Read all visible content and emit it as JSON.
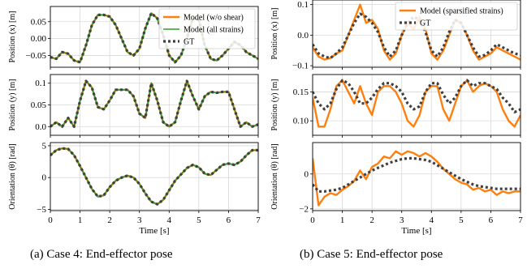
{
  "captions": {
    "left": "(a) Case 4: End-effector pose",
    "right": "(b) Case 5: End-effector pose"
  },
  "colors": {
    "model": "#ff7f0e",
    "model_all": "#2ca02c",
    "gt": "#404040"
  },
  "chart_data": [
    {
      "type": "line",
      "id": "case4-x",
      "ylabel": "Position (x) [m]",
      "xlim": [
        0,
        7
      ],
      "ylim": [
        -0.085,
        0.095
      ],
      "yticks": [
        -0.05,
        0,
        0.05
      ],
      "ytick_labels": [
        "−0.05",
        "0.00",
        "0.05"
      ],
      "xticks": [
        0,
        1,
        2,
        3,
        4,
        5,
        6,
        7
      ],
      "show_xticklabels": false,
      "legend": {
        "position": "top-right",
        "entries": [
          "Model (w/o shear)",
          "Model (all strains)",
          "GT"
        ]
      },
      "x": [
        0,
        0.2,
        0.4,
        0.6,
        0.8,
        1.0,
        1.2,
        1.4,
        1.6,
        1.8,
        2.0,
        2.2,
        2.4,
        2.6,
        2.8,
        3.0,
        3.2,
        3.4,
        3.6,
        3.8,
        4.0,
        4.2,
        4.4,
        4.6,
        4.8,
        5.0,
        5.2,
        5.4,
        5.6,
        5.8,
        6.0,
        6.2,
        6.4,
        6.6,
        6.8,
        7.0
      ],
      "series": [
        {
          "name": "Model (w/o shear)",
          "style": "model",
          "values": [
            -0.055,
            -0.06,
            -0.04,
            -0.045,
            -0.065,
            -0.07,
            -0.02,
            0.04,
            0.07,
            0.07,
            0.065,
            0.04,
            0.0,
            -0.04,
            -0.05,
            -0.03,
            0.03,
            0.075,
            0.06,
            0.01,
            -0.05,
            -0.07,
            -0.05,
            0.0,
            0.06,
            0.055,
            -0.02,
            -0.06,
            -0.065,
            -0.05,
            -0.03,
            -0.01,
            -0.02,
            -0.04,
            -0.05,
            -0.06
          ]
        },
        {
          "name": "Model (all strains)",
          "style": "model_all",
          "values": [
            -0.055,
            -0.06,
            -0.04,
            -0.045,
            -0.065,
            -0.07,
            -0.02,
            0.04,
            0.07,
            0.07,
            0.065,
            0.04,
            0.0,
            -0.04,
            -0.05,
            -0.03,
            0.03,
            0.075,
            0.06,
            0.01,
            -0.05,
            -0.07,
            -0.05,
            0.0,
            0.06,
            0.055,
            -0.02,
            -0.06,
            -0.065,
            -0.05,
            -0.03,
            -0.01,
            -0.02,
            -0.04,
            -0.05,
            -0.06
          ]
        },
        {
          "name": "GT",
          "style": "gt",
          "values": [
            -0.055,
            -0.06,
            -0.04,
            -0.045,
            -0.065,
            -0.07,
            -0.02,
            0.04,
            0.07,
            0.07,
            0.065,
            0.04,
            0.0,
            -0.04,
            -0.05,
            -0.03,
            0.03,
            0.075,
            0.06,
            0.01,
            -0.05,
            -0.07,
            -0.05,
            0.0,
            0.06,
            0.055,
            -0.02,
            -0.06,
            -0.065,
            -0.05,
            -0.03,
            -0.01,
            -0.02,
            -0.04,
            -0.05,
            -0.06
          ]
        }
      ]
    },
    {
      "type": "line",
      "id": "case4-y",
      "ylabel": "Position (y) [m]",
      "xlim": [
        0,
        7
      ],
      "ylim": [
        -0.02,
        0.12
      ],
      "yticks": [
        0.0,
        0.05,
        0.1
      ],
      "ytick_labels": [
        "0.0",
        "0.05",
        "0.1"
      ],
      "xticks": [
        0,
        1,
        2,
        3,
        4,
        5,
        6,
        7
      ],
      "show_xticklabels": false,
      "x": [
        0,
        0.2,
        0.4,
        0.6,
        0.8,
        1.0,
        1.2,
        1.4,
        1.6,
        1.8,
        2.0,
        2.2,
        2.4,
        2.6,
        2.8,
        3.0,
        3.2,
        3.4,
        3.6,
        3.8,
        4.0,
        4.2,
        4.4,
        4.6,
        4.8,
        5.0,
        5.2,
        5.4,
        5.6,
        5.8,
        6.0,
        6.2,
        6.4,
        6.6,
        6.8,
        7.0
      ],
      "series": [
        {
          "name": "Model (w/o shear)",
          "style": "model",
          "values": [
            0.0,
            0.01,
            0.0,
            0.02,
            0.0,
            0.06,
            0.105,
            0.09,
            0.045,
            0.04,
            0.06,
            0.085,
            0.085,
            0.085,
            0.07,
            0.03,
            0.02,
            0.1,
            0.06,
            0.01,
            0.0,
            0.01,
            0.06,
            0.105,
            0.07,
            0.04,
            0.07,
            0.08,
            0.078,
            0.08,
            0.08,
            0.04,
            0.0,
            0.01,
            0.0,
            0.005
          ]
        },
        {
          "name": "Model (all strains)",
          "style": "model_all",
          "values": [
            0.0,
            0.01,
            0.0,
            0.02,
            0.0,
            0.06,
            0.105,
            0.09,
            0.045,
            0.04,
            0.06,
            0.085,
            0.085,
            0.085,
            0.07,
            0.03,
            0.02,
            0.1,
            0.06,
            0.01,
            0.0,
            0.01,
            0.06,
            0.105,
            0.07,
            0.04,
            0.07,
            0.08,
            0.078,
            0.08,
            0.08,
            0.04,
            0.0,
            0.01,
            0.0,
            0.005
          ]
        },
        {
          "name": "GT",
          "style": "gt",
          "values": [
            0.0,
            0.01,
            0.0,
            0.02,
            0.0,
            0.06,
            0.105,
            0.09,
            0.045,
            0.04,
            0.06,
            0.085,
            0.085,
            0.085,
            0.07,
            0.03,
            0.02,
            0.1,
            0.06,
            0.01,
            0.0,
            0.01,
            0.06,
            0.105,
            0.07,
            0.04,
            0.07,
            0.08,
            0.078,
            0.08,
            0.08,
            0.04,
            0.0,
            0.01,
            0.0,
            0.005
          ]
        }
      ]
    },
    {
      "type": "line",
      "id": "case4-theta",
      "ylabel": "Orientation (θ) [rad]",
      "xlim": [
        0,
        7
      ],
      "ylim": [
        -5.2,
        5.5
      ],
      "yticks": [
        -5,
        0,
        5
      ],
      "ytick_labels": [
        "−5",
        "0",
        "5"
      ],
      "xticks": [
        0,
        1,
        2,
        3,
        4,
        5,
        6,
        7
      ],
      "xtick_labels": [
        "0",
        "1",
        "2",
        "3",
        "4",
        "5",
        "6",
        "7"
      ],
      "show_xticklabels": true,
      "xlabel": "Time [s]",
      "x": [
        0,
        0.2,
        0.4,
        0.6,
        0.8,
        1.0,
        1.2,
        1.4,
        1.6,
        1.8,
        2.0,
        2.2,
        2.4,
        2.6,
        2.8,
        3.0,
        3.2,
        3.4,
        3.6,
        3.8,
        4.0,
        4.2,
        4.4,
        4.6,
        4.8,
        5.0,
        5.2,
        5.4,
        5.6,
        5.8,
        6.0,
        6.2,
        6.4,
        6.6,
        6.8,
        7.0
      ],
      "series": [
        {
          "name": "Model (w/o shear)",
          "style": "model",
          "values": [
            3.5,
            4.3,
            4.6,
            4.5,
            3.5,
            1.8,
            0.0,
            -1.8,
            -3.0,
            -2.8,
            -1.5,
            -0.5,
            0.0,
            0.3,
            0.0,
            -1.0,
            -2.5,
            -3.8,
            -4.2,
            -3.5,
            -2.0,
            -0.5,
            0.5,
            1.5,
            2.0,
            1.6,
            0.6,
            0.4,
            1.2,
            2.0,
            2.2,
            2.0,
            2.5,
            3.5,
            4.3,
            4.3
          ]
        },
        {
          "name": "Model (all strains)",
          "style": "model_all",
          "values": [
            3.5,
            4.3,
            4.6,
            4.5,
            3.5,
            1.8,
            0.0,
            -1.8,
            -3.0,
            -2.8,
            -1.5,
            -0.5,
            0.0,
            0.3,
            0.0,
            -1.0,
            -2.5,
            -3.8,
            -4.2,
            -3.5,
            -2.0,
            -0.5,
            0.5,
            1.5,
            2.0,
            1.6,
            0.6,
            0.4,
            1.2,
            2.0,
            2.2,
            2.0,
            2.5,
            3.5,
            4.3,
            4.3
          ]
        },
        {
          "name": "GT",
          "style": "gt",
          "values": [
            3.5,
            4.3,
            4.6,
            4.5,
            3.5,
            1.8,
            0.0,
            -1.8,
            -3.0,
            -2.8,
            -1.5,
            -0.5,
            0.0,
            0.3,
            0.0,
            -1.0,
            -2.5,
            -3.8,
            -4.2,
            -3.5,
            -2.0,
            -0.5,
            0.5,
            1.5,
            2.0,
            1.6,
            0.6,
            0.4,
            1.2,
            2.0,
            2.2,
            2.0,
            2.5,
            3.5,
            4.3,
            4.3
          ]
        }
      ]
    },
    {
      "type": "line",
      "id": "case5-x",
      "ylabel": "Position (x) [m]",
      "xlim": [
        0,
        7
      ],
      "ylim": [
        -0.105,
        0.115
      ],
      "yticks": [
        -0.1,
        0.0,
        0.1
      ],
      "ytick_labels": [
        "−0.1",
        "0.0",
        "0.1"
      ],
      "xticks": [
        0,
        1,
        2,
        3,
        4,
        5,
        6,
        7
      ],
      "show_xticklabels": false,
      "legend": {
        "position": "top-right",
        "entries": [
          "Model (sparsified strains)",
          "GT"
        ]
      },
      "x": [
        0,
        0.2,
        0.4,
        0.6,
        0.8,
        1.0,
        1.2,
        1.4,
        1.6,
        1.8,
        2.0,
        2.2,
        2.4,
        2.6,
        2.8,
        3.0,
        3.2,
        3.4,
        3.6,
        3.8,
        4.0,
        4.2,
        4.4,
        4.6,
        4.8,
        5.0,
        5.2,
        5.4,
        5.6,
        5.8,
        6.0,
        6.2,
        6.4,
        6.6,
        6.8,
        7.0
      ],
      "series": [
        {
          "name": "Model (sparsified strains)",
          "style": "model",
          "values": [
            -0.04,
            -0.07,
            -0.08,
            -0.075,
            -0.06,
            -0.05,
            0.0,
            0.05,
            0.1,
            0.04,
            0.05,
            0.02,
            -0.05,
            -0.08,
            -0.06,
            0.0,
            0.04,
            0.02,
            0.06,
            0.02,
            -0.06,
            -0.08,
            -0.05,
            0.0,
            0.05,
            0.04,
            0.0,
            -0.05,
            -0.08,
            -0.07,
            -0.06,
            -0.04,
            -0.05,
            -0.06,
            -0.07,
            -0.08
          ]
        },
        {
          "name": "GT",
          "style": "gt",
          "values": [
            -0.03,
            -0.06,
            -0.07,
            -0.075,
            -0.06,
            -0.04,
            0.0,
            0.04,
            0.07,
            0.06,
            0.04,
            0.01,
            -0.04,
            -0.07,
            -0.05,
            0.0,
            0.04,
            0.06,
            0.05,
            0.01,
            -0.05,
            -0.07,
            -0.04,
            0.01,
            0.05,
            0.04,
            0.0,
            -0.04,
            -0.07,
            -0.065,
            -0.05,
            -0.03,
            -0.04,
            -0.05,
            -0.06,
            -0.065
          ]
        }
      ]
    },
    {
      "type": "line",
      "id": "case5-y",
      "ylabel": "Position (y) [m]",
      "xlim": [
        0,
        7
      ],
      "ylim": [
        0.075,
        0.18
      ],
      "yticks": [
        0.1,
        0.15
      ],
      "ytick_labels": [
        "0.10",
        "0.15"
      ],
      "xticks": [
        0,
        1,
        2,
        3,
        4,
        5,
        6,
        7
      ],
      "show_xticklabels": false,
      "x": [
        0,
        0.2,
        0.4,
        0.6,
        0.8,
        1.0,
        1.2,
        1.4,
        1.6,
        1.8,
        2.0,
        2.2,
        2.4,
        2.6,
        2.8,
        3.0,
        3.2,
        3.4,
        3.6,
        3.8,
        4.0,
        4.2,
        4.4,
        4.6,
        4.8,
        5.0,
        5.2,
        5.4,
        5.6,
        5.8,
        6.0,
        6.2,
        6.4,
        6.6,
        6.8,
        7.0
      ],
      "series": [
        {
          "name": "Model (sparsified strains)",
          "style": "model",
          "values": [
            0.14,
            0.09,
            0.09,
            0.12,
            0.16,
            0.17,
            0.15,
            0.13,
            0.16,
            0.13,
            0.11,
            0.15,
            0.16,
            0.16,
            0.15,
            0.13,
            0.1,
            0.09,
            0.11,
            0.15,
            0.16,
            0.16,
            0.12,
            0.1,
            0.13,
            0.16,
            0.17,
            0.15,
            0.16,
            0.165,
            0.16,
            0.15,
            0.12,
            0.1,
            0.09,
            0.11
          ]
        },
        {
          "name": "GT",
          "style": "gt",
          "values": [
            0.15,
            0.13,
            0.12,
            0.13,
            0.155,
            0.17,
            0.165,
            0.15,
            0.13,
            0.13,
            0.14,
            0.155,
            0.165,
            0.165,
            0.16,
            0.15,
            0.13,
            0.12,
            0.125,
            0.15,
            0.165,
            0.165,
            0.145,
            0.13,
            0.14,
            0.16,
            0.17,
            0.16,
            0.165,
            0.165,
            0.16,
            0.155,
            0.14,
            0.13,
            0.115,
            0.12
          ]
        }
      ]
    },
    {
      "type": "line",
      "id": "case5-theta",
      "ylabel": "Orientation (θ) [rad]",
      "xlim": [
        0,
        7
      ],
      "ylim": [
        -2.1,
        1.8
      ],
      "yticks": [
        -2,
        0
      ],
      "ytick_labels": [
        "−2",
        "0"
      ],
      "xticks": [
        0,
        1,
        2,
        3,
        4,
        5,
        6,
        7
      ],
      "xtick_labels": [
        "0",
        "1",
        "2",
        "3",
        "4",
        "5",
        "6",
        "7"
      ],
      "show_xticklabels": true,
      "xlabel": "Time [s]",
      "x": [
        0,
        0.2,
        0.4,
        0.6,
        0.8,
        1.0,
        1.2,
        1.4,
        1.6,
        1.8,
        2.0,
        2.2,
        2.4,
        2.6,
        2.8,
        3.0,
        3.2,
        3.4,
        3.6,
        3.8,
        4.0,
        4.2,
        4.4,
        4.6,
        4.8,
        5.0,
        5.2,
        5.4,
        5.6,
        5.8,
        6.0,
        6.2,
        6.4,
        6.6,
        6.8,
        7.0
      ],
      "series": [
        {
          "name": "Model (sparsified strains)",
          "style": "model",
          "values": [
            0.9,
            -1.8,
            -1.3,
            -1.1,
            -1.2,
            -0.9,
            -0.7,
            -0.4,
            0.2,
            -0.3,
            0.4,
            0.6,
            1.0,
            0.9,
            1.3,
            1.1,
            1.3,
            1.2,
            1.0,
            1.2,
            1.0,
            0.7,
            0.3,
            0.0,
            -0.3,
            -0.5,
            -0.6,
            -0.9,
            -0.8,
            -1.0,
            -0.9,
            -1.2,
            -1.0,
            -1.1,
            -1.0,
            -1.0
          ]
        },
        {
          "name": "GT",
          "style": "gt",
          "values": [
            -0.6,
            -1.0,
            -1.0,
            -0.95,
            -0.9,
            -0.8,
            -0.6,
            -0.4,
            -0.2,
            0.0,
            0.2,
            0.35,
            0.5,
            0.65,
            0.75,
            0.85,
            0.9,
            0.9,
            0.85,
            0.8,
            0.7,
            0.5,
            0.3,
            0.1,
            -0.1,
            -0.3,
            -0.45,
            -0.6,
            -0.7,
            -0.75,
            -0.8,
            -0.85,
            -0.85,
            -0.85,
            -0.85,
            -0.85
          ]
        }
      ]
    }
  ]
}
